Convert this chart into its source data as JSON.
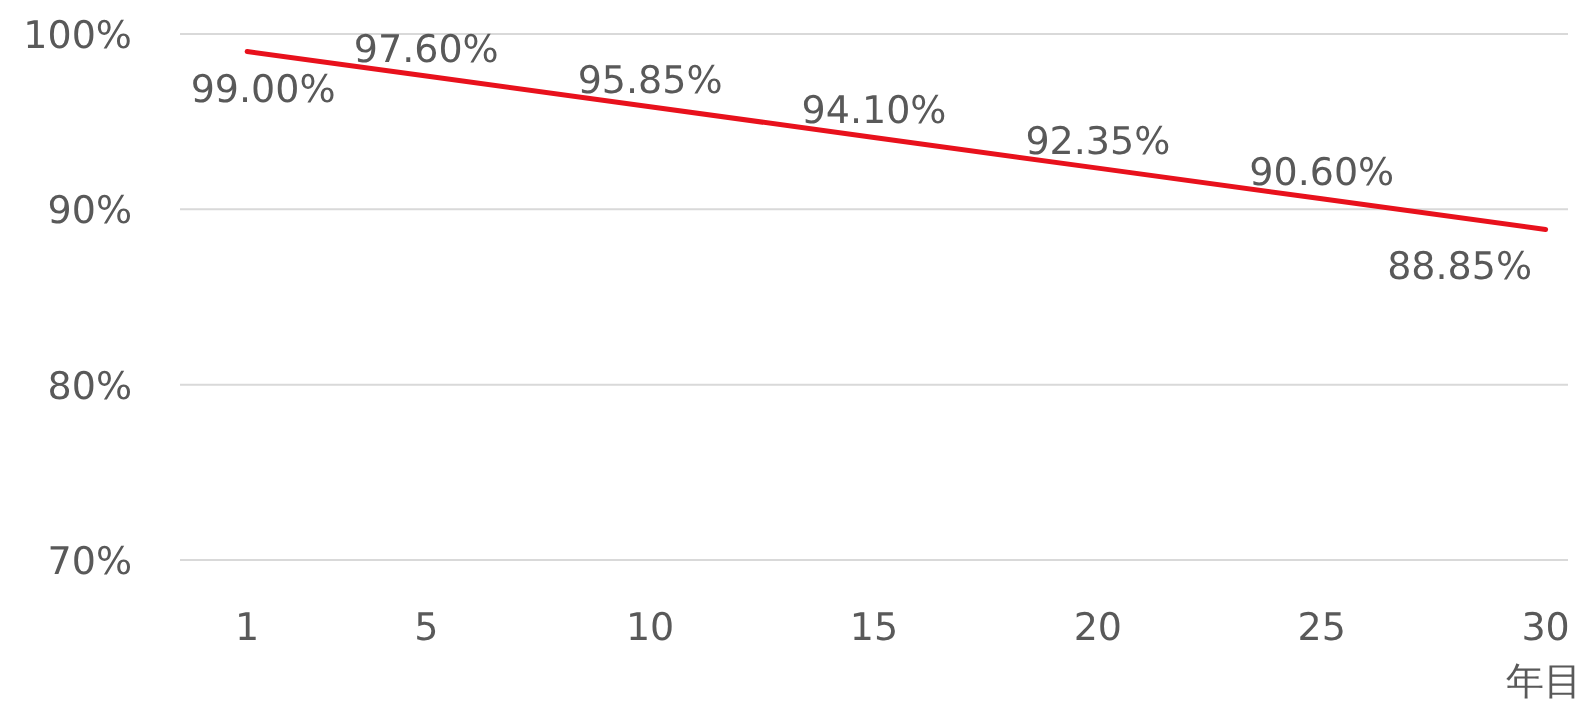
{
  "chart_data": {
    "type": "line",
    "xlabel": "年目",
    "x": [
      1,
      5,
      10,
      15,
      20,
      25,
      30
    ],
    "series": [
      {
        "color": "#e8111c",
        "values": [
          99.0,
          97.6,
          95.85,
          94.1,
          92.35,
          90.6,
          88.85
        ],
        "value_labels": [
          "99.00%",
          "97.60%",
          "95.85%",
          "94.10%",
          "92.35%",
          "90.60%",
          "88.85%"
        ]
      }
    ],
    "xlim": [
      -0.5,
      30.5
    ],
    "xticks": [
      1,
      5,
      10,
      15,
      20,
      25,
      30
    ],
    "ylim": [
      70,
      100
    ],
    "yticks": [
      {
        "value": 70,
        "label": "70%"
      },
      {
        "value": 80,
        "label": "80%"
      },
      {
        "value": 90,
        "label": "90%"
      },
      {
        "value": 100,
        "label": "100%"
      }
    ],
    "grid": "y"
  }
}
